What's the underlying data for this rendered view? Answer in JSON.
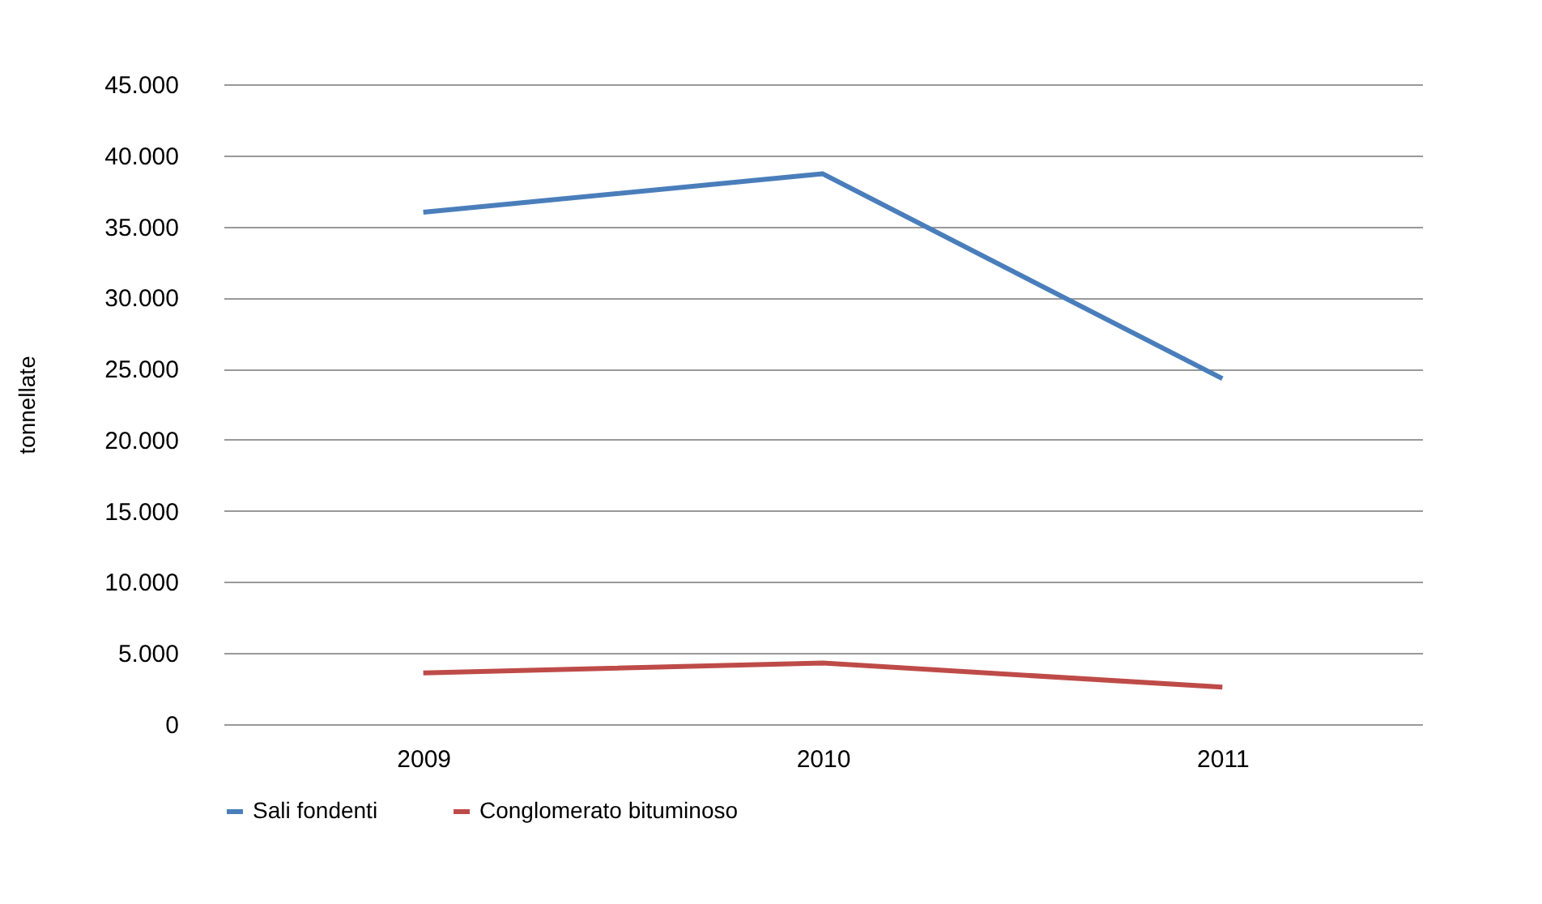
{
  "chart_data": {
    "type": "line",
    "ylabel": "tonnellate",
    "categories": [
      "2009",
      "2010",
      "2011"
    ],
    "series": [
      {
        "name": "Sali fondenti",
        "color": "#4a7ebb",
        "values": [
          36000,
          38700,
          24300
        ]
      },
      {
        "name": "Conglomerato bituminoso",
        "color": "#be4b48",
        "values": [
          3600,
          4300,
          2600
        ]
      }
    ],
    "ylim": [
      0,
      45000
    ],
    "yticks": [
      {
        "value": 0,
        "label": "0"
      },
      {
        "value": 5000,
        "label": "5.000"
      },
      {
        "value": 10000,
        "label": "10.000"
      },
      {
        "value": 15000,
        "label": "15.000"
      },
      {
        "value": 20000,
        "label": "20.000"
      },
      {
        "value": 25000,
        "label": "25.000"
      },
      {
        "value": 30000,
        "label": "30.000"
      },
      {
        "value": 35000,
        "label": "35.000"
      },
      {
        "value": 40000,
        "label": "40.000"
      },
      {
        "value": 45000,
        "label": "45.000"
      }
    ],
    "grid": "y",
    "legend": "bottom",
    "marker": "none",
    "line_style": "solid"
  }
}
